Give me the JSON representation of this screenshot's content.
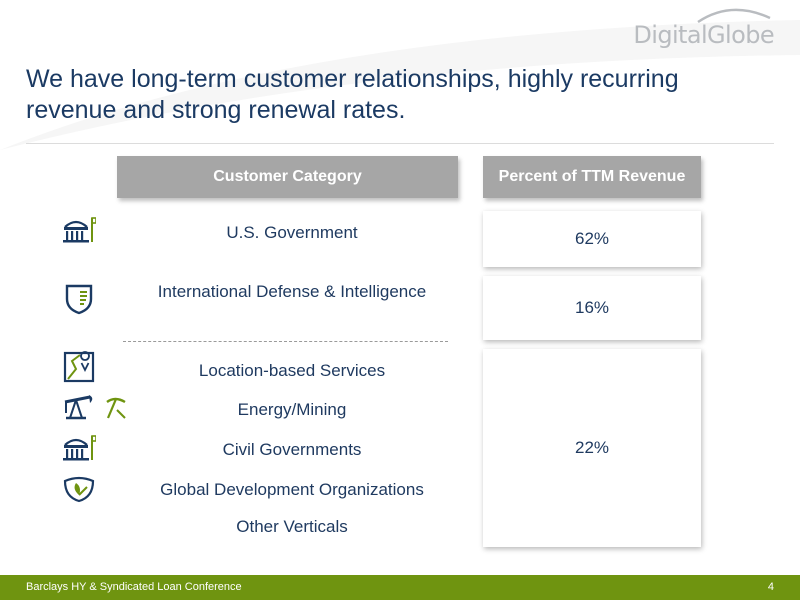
{
  "brand": {
    "logo_text": "DigitalGlobe"
  },
  "slide": {
    "title": "We have long-term customer relationships, highly recurring revenue and strong renewal rates."
  },
  "table": {
    "headers": {
      "category": "Customer Category",
      "revenue": "Percent of TTM Revenue"
    },
    "rows": [
      {
        "category": "U.S. Government",
        "icon": "government-building-icon",
        "percent": "62%"
      },
      {
        "category": "International Defense & Intelligence",
        "icon": "shield-icon",
        "percent": "16%"
      },
      {
        "category": "Location-based Services",
        "icon": "map-pin-icon"
      },
      {
        "category": "Energy/Mining",
        "icon": "oil-pump-icon"
      },
      {
        "category": "Civil Governments",
        "icon": "government-building-icon"
      },
      {
        "category": "Global Development Organizations",
        "icon": "leaf-hand-icon"
      },
      {
        "category": "Other Verticals"
      }
    ],
    "grouped_percent": "22%"
  },
  "footer": {
    "text": "Barclays HY & Syndicated Loan Conference",
    "page": "4"
  },
  "colors": {
    "navy": "#1b3a63",
    "green": "#6f9410",
    "header_gray": "#a6a6a6"
  }
}
